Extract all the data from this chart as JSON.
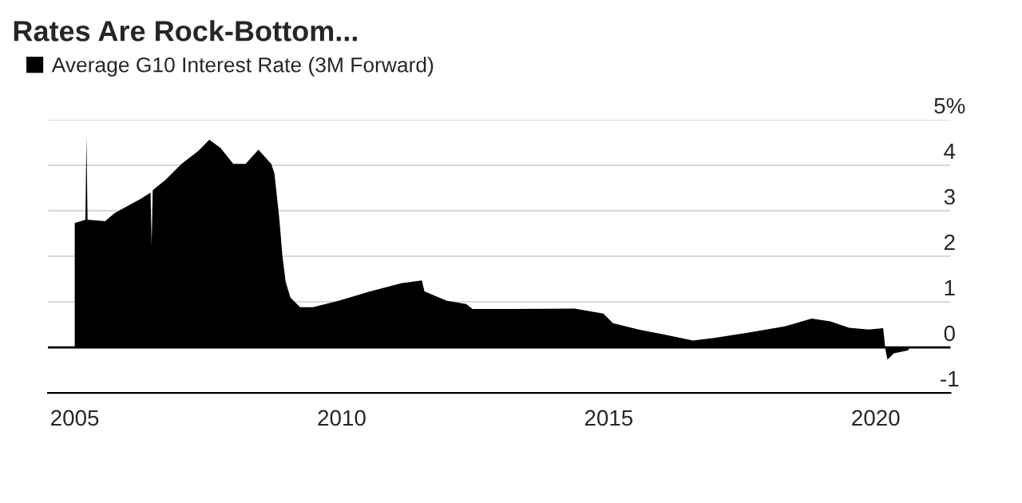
{
  "chart_data": {
    "type": "area",
    "title": "Rates Are Rock-Bottom...",
    "series": [
      {
        "name": "Average G10 Interest Rate (3M Forward)",
        "color": "#000000",
        "x": [
          2005.0,
          2005.2,
          2005.22,
          2005.24,
          2005.57,
          2005.75,
          2006.23,
          2006.42,
          2006.44,
          2006.46,
          2006.7,
          2007.0,
          2007.31,
          2007.52,
          2007.73,
          2007.97,
          2008.2,
          2008.44,
          2008.68,
          2008.74,
          2008.83,
          2008.89,
          2008.95,
          2009.04,
          2009.22,
          2009.46,
          2009.94,
          2010.53,
          2011.13,
          2011.5,
          2011.55,
          2011.97,
          2012.33,
          2012.45,
          2013.17,
          2014.36,
          2014.9,
          2015.08,
          2015.56,
          2016.04,
          2016.58,
          2017.0,
          2017.6,
          2018.3,
          2018.8,
          2019.15,
          2019.5,
          2019.87,
          2020.14,
          2020.18,
          2020.22,
          2020.34,
          2020.6,
          2020.62
        ],
        "values": [
          2.73,
          2.8,
          4.63,
          2.8,
          2.77,
          2.95,
          3.26,
          3.4,
          2.25,
          3.45,
          3.68,
          4.03,
          4.31,
          4.56,
          4.38,
          4.03,
          4.03,
          4.34,
          4.03,
          3.82,
          2.84,
          2.0,
          1.44,
          1.09,
          0.88,
          0.88,
          1.02,
          1.23,
          1.41,
          1.47,
          1.23,
          1.02,
          0.95,
          0.84,
          0.84,
          0.85,
          0.74,
          0.53,
          0.39,
          0.28,
          0.15,
          0.21,
          0.32,
          0.46,
          0.63,
          0.57,
          0.43,
          0.39,
          0.42,
          -0.03,
          -0.27,
          -0.13,
          -0.07,
          -0.05
        ]
      }
    ],
    "xlim": [
      2004.5,
      2021.4
    ],
    "xticks": [
      2005,
      2010,
      2015,
      2020
    ],
    "ylim": [
      -1,
      5
    ],
    "yticks": [
      -1,
      0,
      1,
      2,
      3,
      4,
      {
        "value": 5,
        "label": "5%"
      }
    ],
    "ref_lines": [
      {
        "axis": "y",
        "value": 0,
        "color": "#000000"
      }
    ],
    "grid": "y",
    "legend": "top left"
  }
}
